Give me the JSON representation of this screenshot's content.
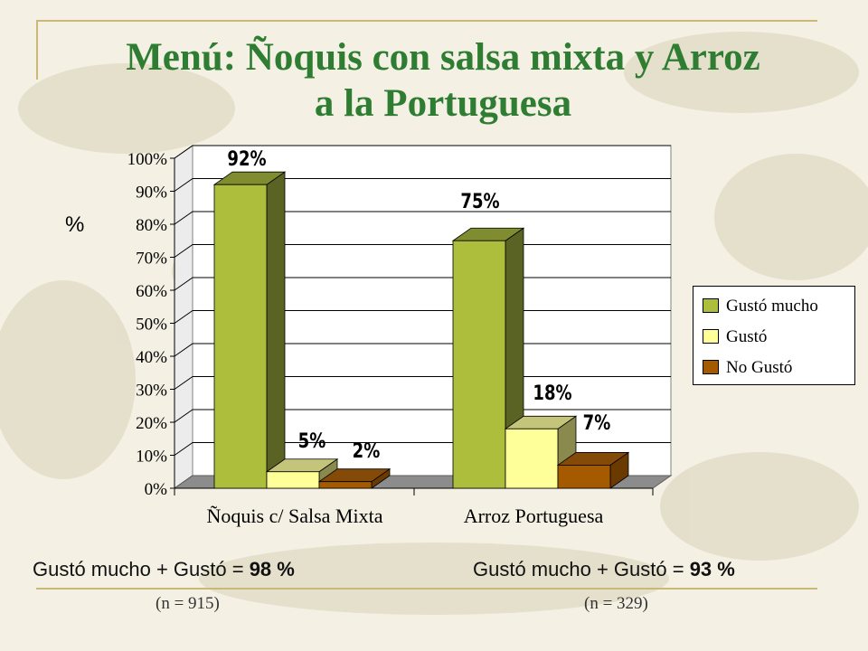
{
  "slide": {
    "title_line1": "Menú: Ñoquis con salsa mixta y Arroz",
    "title_line2": "a la Portuguesa"
  },
  "chart_data": {
    "type": "bar",
    "ylabel": "%",
    "ylim": [
      0,
      100
    ],
    "yticks": [
      "0%",
      "10%",
      "20%",
      "30%",
      "40%",
      "50%",
      "60%",
      "70%",
      "80%",
      "90%",
      "100%"
    ],
    "categories": [
      "Ñoquis c/ Salsa Mixta",
      "Arroz Portuguesa"
    ],
    "series": [
      {
        "name": "Gustó mucho",
        "values": [
          92,
          75
        ],
        "labels": [
          "92%",
          "75%"
        ],
        "color": "#adbd3c",
        "side": "#5a6324",
        "top": "#7f8c30"
      },
      {
        "name": "Gustó",
        "values": [
          5,
          18
        ],
        "labels": [
          "5%",
          "18%"
        ],
        "color": "#ffff99",
        "side": "#8a8a4f",
        "top": "#c4c47a"
      },
      {
        "name": "No Gustó",
        "values": [
          2,
          7
        ],
        "labels": [
          "2%",
          "7%"
        ],
        "color": "#a55a00",
        "side": "#6b3a00",
        "top": "#844a08"
      }
    ],
    "grid": true,
    "legend_position": "right"
  },
  "summaries": [
    {
      "prefix": "Gustó mucho + Gustó = ",
      "value": "98 %",
      "n": "(n = 915)"
    },
    {
      "prefix": "Gustó mucho + Gustó = ",
      "value": "93 %",
      "n": "(n = 329)"
    }
  ]
}
